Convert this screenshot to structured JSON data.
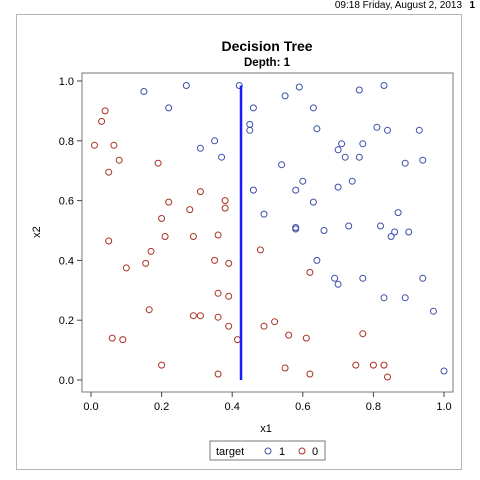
{
  "header": {
    "timestamp": "09:18 Friday, August 2, 2013",
    "page_number": "1"
  },
  "chart_data": {
    "type": "scatter",
    "title": "Decision Tree",
    "subtitle": "Depth: 1",
    "xlabel": "x1",
    "ylabel": "x2",
    "xlim": [
      0,
      1
    ],
    "ylim": [
      0,
      1
    ],
    "xticks": [
      "0.0",
      "0.2",
      "0.4",
      "0.6",
      "0.8",
      "1.0"
    ],
    "yticks": [
      "0.0",
      "0.2",
      "0.4",
      "0.6",
      "0.8",
      "1.0"
    ],
    "grid": false,
    "split_line": {
      "x": 0.425,
      "y_start": 0.0,
      "y_end": 0.985,
      "color": "#1a1aff"
    },
    "legend": {
      "title": "target",
      "placement": "bottom",
      "entries": [
        {
          "label": "1",
          "color": "#3b4fa8"
        },
        {
          "label": "0",
          "color": "#a83224"
        }
      ]
    },
    "series": [
      {
        "name": "1",
        "color": "#3b4fa8",
        "points": [
          [
            0.15,
            0.965
          ],
          [
            0.27,
            0.985
          ],
          [
            0.42,
            0.985
          ],
          [
            0.59,
            0.98
          ],
          [
            0.22,
            0.91
          ],
          [
            0.46,
            0.91
          ],
          [
            0.63,
            0.91
          ],
          [
            0.55,
            0.95
          ],
          [
            0.76,
            0.97
          ],
          [
            0.83,
            0.985
          ],
          [
            0.45,
            0.855
          ],
          [
            0.45,
            0.835
          ],
          [
            0.64,
            0.84
          ],
          [
            0.81,
            0.845
          ],
          [
            0.84,
            0.835
          ],
          [
            0.93,
            0.835
          ],
          [
            0.35,
            0.8
          ],
          [
            0.31,
            0.775
          ],
          [
            0.37,
            0.745
          ],
          [
            0.71,
            0.79
          ],
          [
            0.77,
            0.79
          ],
          [
            0.7,
            0.77
          ],
          [
            0.72,
            0.745
          ],
          [
            0.76,
            0.745
          ],
          [
            0.54,
            0.72
          ],
          [
            0.89,
            0.725
          ],
          [
            0.94,
            0.735
          ],
          [
            0.6,
            0.665
          ],
          [
            0.74,
            0.665
          ],
          [
            0.46,
            0.635
          ],
          [
            0.58,
            0.635
          ],
          [
            0.7,
            0.645
          ],
          [
            0.63,
            0.595
          ],
          [
            0.49,
            0.555
          ],
          [
            0.87,
            0.56
          ],
          [
            0.58,
            0.51
          ],
          [
            0.58,
            0.505
          ],
          [
            0.66,
            0.5
          ],
          [
            0.73,
            0.515
          ],
          [
            0.82,
            0.515
          ],
          [
            0.9,
            0.495
          ],
          [
            0.86,
            0.495
          ],
          [
            0.85,
            0.48
          ],
          [
            0.64,
            0.4
          ],
          [
            0.69,
            0.34
          ],
          [
            0.7,
            0.32
          ],
          [
            0.77,
            0.34
          ],
          [
            0.94,
            0.34
          ],
          [
            0.83,
            0.275
          ],
          [
            0.89,
            0.275
          ],
          [
            0.97,
            0.23
          ],
          [
            1.0,
            0.03
          ]
        ]
      },
      {
        "name": "0",
        "color": "#a83224",
        "points": [
          [
            0.04,
            0.9
          ],
          [
            0.03,
            0.865
          ],
          [
            0.01,
            0.785
          ],
          [
            0.065,
            0.785
          ],
          [
            0.08,
            0.735
          ],
          [
            0.05,
            0.695
          ],
          [
            0.19,
            0.725
          ],
          [
            0.31,
            0.63
          ],
          [
            0.28,
            0.57
          ],
          [
            0.22,
            0.595
          ],
          [
            0.38,
            0.6
          ],
          [
            0.38,
            0.575
          ],
          [
            0.2,
            0.54
          ],
          [
            0.21,
            0.48
          ],
          [
            0.29,
            0.48
          ],
          [
            0.36,
            0.485
          ],
          [
            0.05,
            0.465
          ],
          [
            0.17,
            0.43
          ],
          [
            0.1,
            0.375
          ],
          [
            0.155,
            0.39
          ],
          [
            0.35,
            0.4
          ],
          [
            0.39,
            0.39
          ],
          [
            0.62,
            0.36
          ],
          [
            0.48,
            0.435
          ],
          [
            0.36,
            0.29
          ],
          [
            0.39,
            0.28
          ],
          [
            0.165,
            0.235
          ],
          [
            0.29,
            0.215
          ],
          [
            0.31,
            0.215
          ],
          [
            0.36,
            0.21
          ],
          [
            0.39,
            0.18
          ],
          [
            0.49,
            0.18
          ],
          [
            0.52,
            0.195
          ],
          [
            0.56,
            0.15
          ],
          [
            0.61,
            0.14
          ],
          [
            0.77,
            0.155
          ],
          [
            0.415,
            0.135
          ],
          [
            0.06,
            0.14
          ],
          [
            0.09,
            0.135
          ],
          [
            0.2,
            0.05
          ],
          [
            0.36,
            0.02
          ],
          [
            0.55,
            0.04
          ],
          [
            0.62,
            0.02
          ],
          [
            0.75,
            0.05
          ],
          [
            0.8,
            0.05
          ],
          [
            0.83,
            0.05
          ],
          [
            0.84,
            0.01
          ]
        ]
      }
    ]
  }
}
